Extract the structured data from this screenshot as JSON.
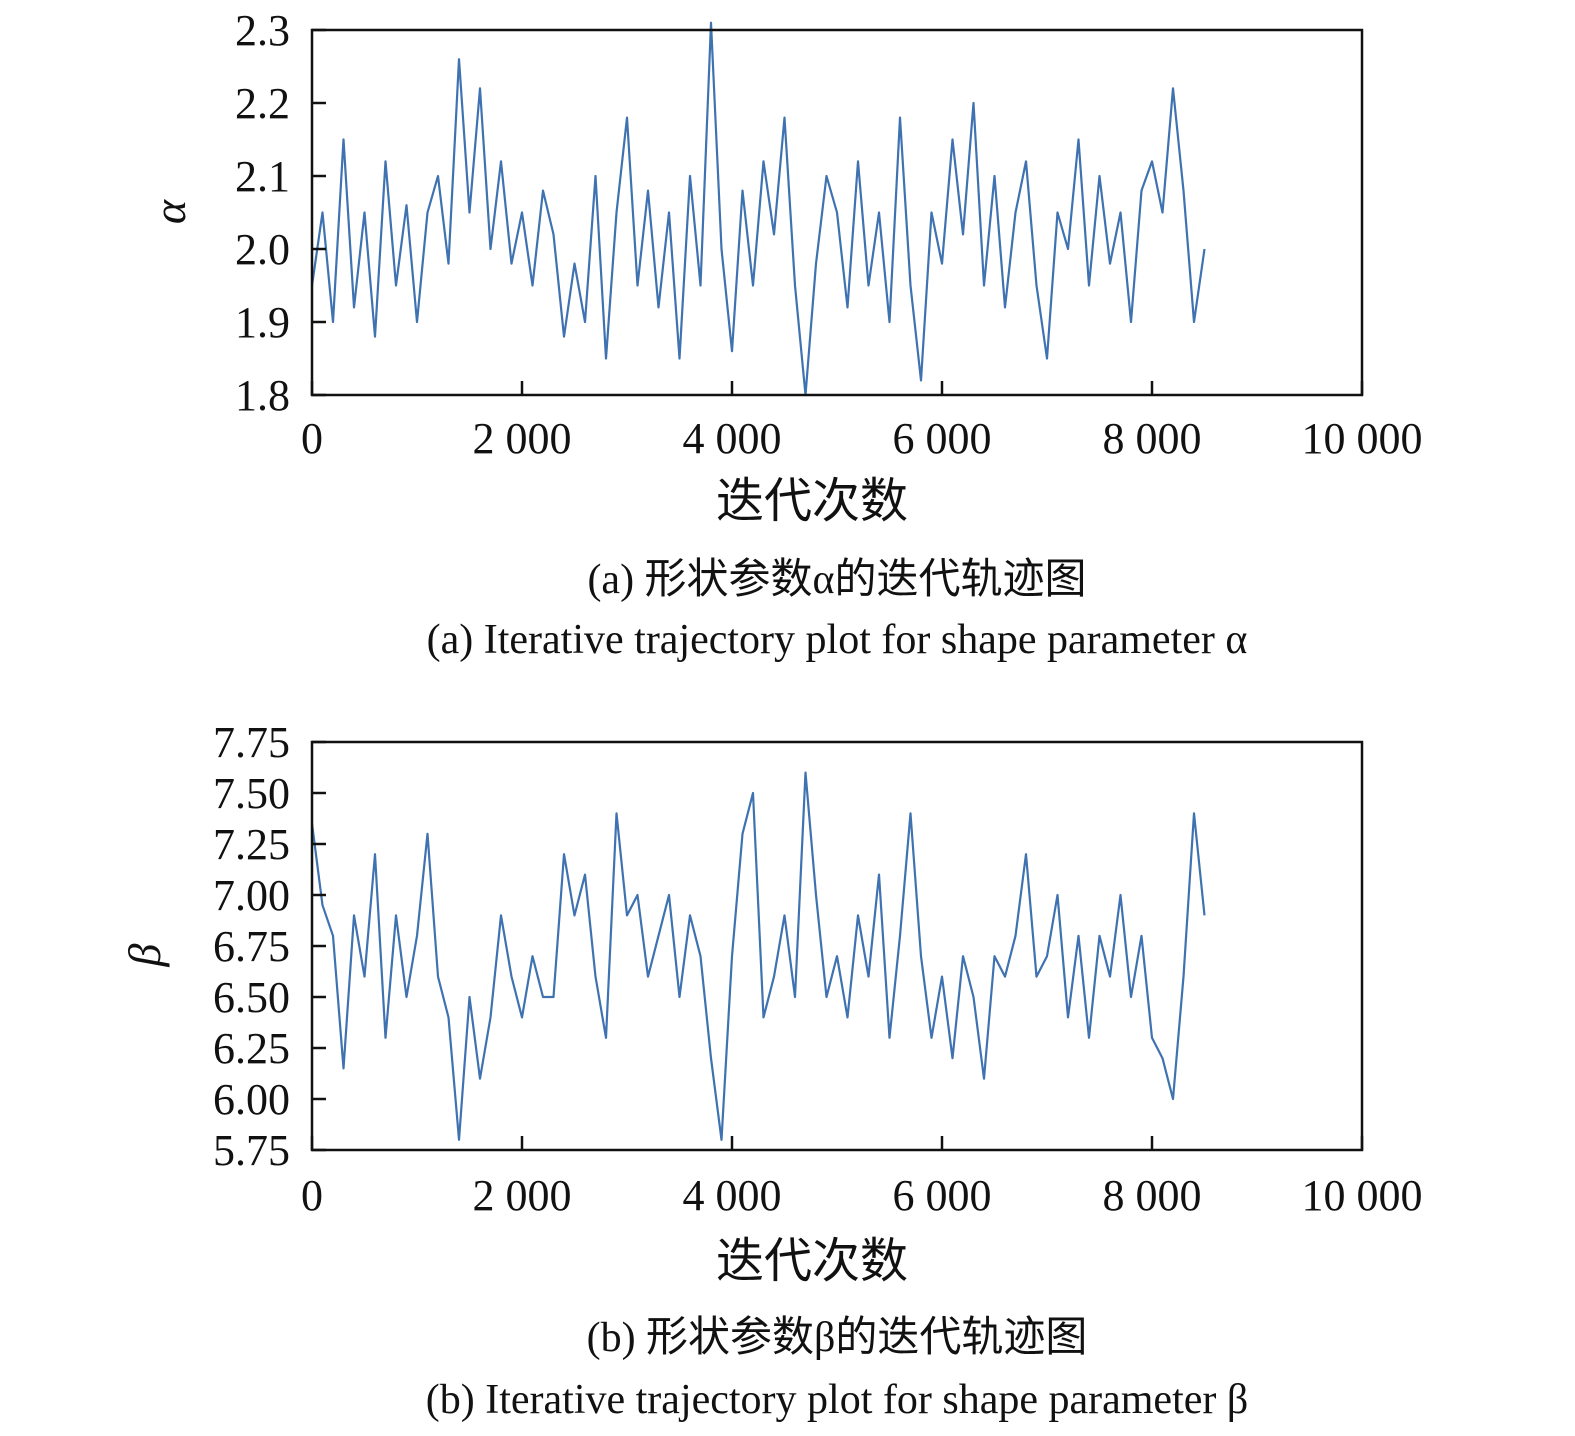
{
  "line_color": "#3f72b0",
  "chart_data": [
    {
      "type": "line",
      "title_cn": "(a) 形状参数α的迭代轨迹图",
      "title_en": "(a) Iterative trajectory plot for shape parameter α",
      "xlabel": "迭代次数",
      "ylabel": "α",
      "xlim": [
        0,
        10000
      ],
      "ylim": [
        1.8,
        2.3
      ],
      "xticks": [
        0,
        2000,
        4000,
        6000,
        8000,
        10000
      ],
      "xtick_labels": [
        "0",
        "2 000",
        "4 000",
        "6 000",
        "8 000",
        "10 000"
      ],
      "yticks": [
        1.8,
        1.9,
        2.0,
        2.1,
        2.2,
        2.3
      ],
      "ytick_labels": [
        "1.8",
        "1.9",
        "2.0",
        "2.1",
        "2.2",
        "2.3"
      ],
      "grid": false,
      "x_step": 100,
      "values": [
        1.95,
        2.05,
        1.9,
        2.15,
        1.92,
        2.05,
        1.88,
        2.12,
        1.95,
        2.06,
        1.9,
        2.05,
        2.1,
        1.98,
        2.26,
        2.05,
        2.22,
        2.0,
        2.12,
        1.98,
        2.05,
        1.95,
        2.08,
        2.02,
        1.88,
        1.98,
        1.9,
        2.1,
        1.85,
        2.05,
        2.18,
        1.95,
        2.08,
        1.92,
        2.05,
        1.85,
        2.1,
        1.95,
        2.31,
        2.0,
        1.86,
        2.08,
        1.95,
        2.12,
        2.02,
        2.18,
        1.95,
        1.8,
        1.98,
        2.1,
        2.05,
        1.92,
        2.12,
        1.95,
        2.05,
        1.9,
        2.18,
        1.95,
        1.82,
        2.05,
        1.98,
        2.15,
        2.02,
        2.2,
        1.95,
        2.1,
        1.92,
        2.05,
        2.12,
        1.95,
        1.85,
        2.05,
        2.0,
        2.15,
        1.95,
        2.1,
        1.98,
        2.05,
        1.9,
        2.08,
        2.12,
        2.05,
        2.22,
        2.08,
        1.9,
        2.0
      ]
    },
    {
      "type": "line",
      "title_cn": "(b) 形状参数β的迭代轨迹图",
      "title_en": "(b) Iterative trajectory plot for shape parameter β",
      "xlabel": "迭代次数",
      "ylabel": "β",
      "xlim": [
        0,
        10000
      ],
      "ylim": [
        5.75,
        7.75
      ],
      "xticks": [
        0,
        2000,
        4000,
        6000,
        8000,
        10000
      ],
      "xtick_labels": [
        "0",
        "2 000",
        "4 000",
        "6 000",
        "8 000",
        "10 000"
      ],
      "yticks": [
        5.75,
        6.0,
        6.25,
        6.5,
        6.75,
        7.0,
        7.25,
        7.5,
        7.75
      ],
      "ytick_labels": [
        "5.75",
        "6.00",
        "6.25",
        "6.50",
        "6.75",
        "7.00",
        "7.25",
        "7.50",
        "7.75"
      ],
      "grid": false,
      "x_step": 100,
      "values": [
        7.35,
        6.95,
        6.8,
        6.15,
        6.9,
        6.6,
        7.2,
        6.3,
        6.9,
        6.5,
        6.8,
        7.3,
        6.6,
        6.4,
        5.8,
        6.5,
        6.1,
        6.4,
        6.9,
        6.6,
        6.4,
        6.7,
        6.5,
        6.5,
        7.2,
        6.9,
        7.1,
        6.6,
        6.3,
        7.4,
        6.9,
        7.0,
        6.6,
        6.8,
        7.0,
        6.5,
        6.9,
        6.7,
        6.2,
        5.8,
        6.7,
        7.3,
        7.5,
        6.4,
        6.6,
        6.9,
        6.5,
        7.6,
        7.0,
        6.5,
        6.7,
        6.4,
        6.9,
        6.6,
        7.1,
        6.3,
        6.8,
        7.4,
        6.7,
        6.3,
        6.6,
        6.2,
        6.7,
        6.5,
        6.1,
        6.7,
        6.6,
        6.8,
        7.2,
        6.6,
        6.7,
        7.0,
        6.4,
        6.8,
        6.3,
        6.8,
        6.6,
        7.0,
        6.5,
        6.8,
        6.3,
        6.2,
        6.0,
        6.6,
        7.4,
        6.9
      ]
    }
  ]
}
